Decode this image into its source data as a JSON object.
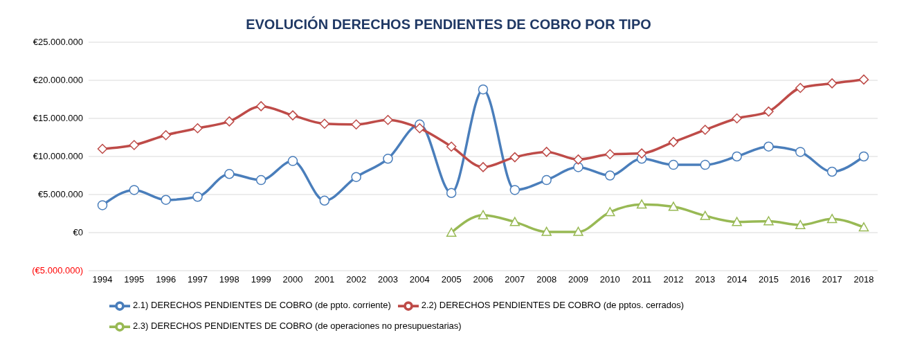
{
  "chart_data": {
    "type": "line",
    "title": "EVOLUCIÓN DERECHOS PENDIENTES DE COBRO POR TIPO",
    "categories": [
      "1994",
      "1995",
      "1996",
      "1997",
      "1998",
      "1999",
      "2000",
      "2001",
      "2002",
      "2003",
      "2004",
      "2005",
      "2006",
      "2007",
      "2008",
      "2009",
      "2010",
      "2011",
      "2012",
      "2013",
      "2014",
      "2015",
      "2016",
      "2017",
      "2018"
    ],
    "series": [
      {
        "name": "2.1) DERECHOS PENDIENTES DE COBRO (de ppto. corriente)",
        "color": "#4a7ebb",
        "marker": "circle",
        "values": [
          3600000,
          5600000,
          4300000,
          4700000,
          7700000,
          6900000,
          9400000,
          4200000,
          7300000,
          9700000,
          14200000,
          5200000,
          18800000,
          5600000,
          6900000,
          8600000,
          7500000,
          9700000,
          8900000,
          8900000,
          10000000,
          11300000,
          10600000,
          8000000,
          10000000
        ]
      },
      {
        "name": "2.2) DERECHOS PENDIENTES DE COBRO (de pptos. cerrados)",
        "color": "#be4b48",
        "marker": "diamond",
        "values": [
          11000000,
          11500000,
          12800000,
          13700000,
          14600000,
          16600000,
          15400000,
          14300000,
          14200000,
          14800000,
          13700000,
          11300000,
          8600000,
          9900000,
          10600000,
          9600000,
          10300000,
          10400000,
          11900000,
          13500000,
          15000000,
          15900000,
          19000000,
          19600000,
          20100000
        ]
      },
      {
        "name": "2.3) DERECHOS PENDIENTES DE COBRO (de operaciones no presupuestarias)",
        "color": "#98b954",
        "marker": "triangle",
        "values": [
          null,
          null,
          null,
          null,
          null,
          null,
          null,
          null,
          null,
          null,
          null,
          0,
          2300000,
          1400000,
          100000,
          100000,
          2700000,
          3700000,
          3400000,
          2200000,
          1400000,
          1500000,
          1000000,
          1800000,
          700000
        ]
      }
    ],
    "ylim": [
      -5000000,
      25000000
    ],
    "yticks": [
      {
        "value": -5000000,
        "label": "(€5.000.000)"
      },
      {
        "value": 0,
        "label": "€0"
      },
      {
        "value": 5000000,
        "label": "€5.000.000"
      },
      {
        "value": 10000000,
        "label": "€10.000.000"
      },
      {
        "value": 15000000,
        "label": "€15.000.000"
      },
      {
        "value": 20000000,
        "label": "€20.000.000"
      },
      {
        "value": 25000000,
        "label": "€25.000.000"
      }
    ],
    "grid": "y",
    "legend": "bottom"
  }
}
